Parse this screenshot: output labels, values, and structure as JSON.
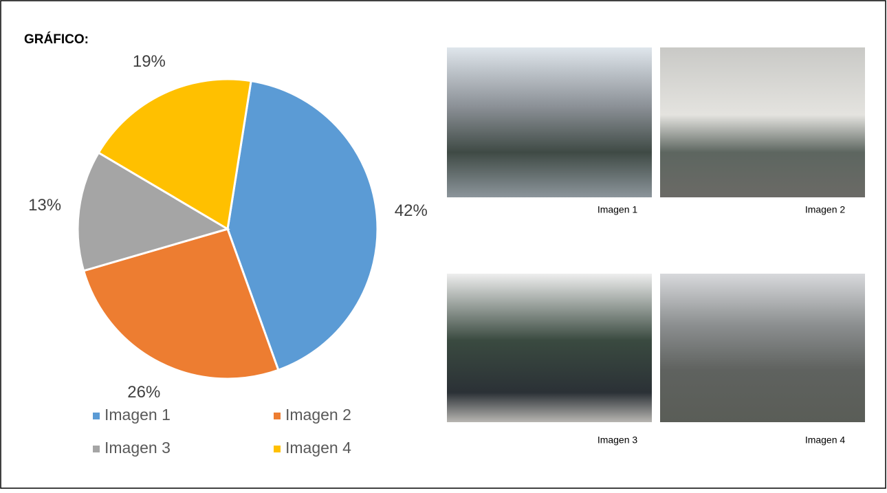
{
  "chart_data": {
    "type": "pie",
    "title": "GRÁFICO:",
    "categories": [
      "Imagen 1",
      "Imagen 2",
      "Imagen 3",
      "Imagen 4"
    ],
    "values": [
      42,
      26,
      13,
      19
    ],
    "value_labels": [
      "42%",
      "26%",
      "13%",
      "19%"
    ],
    "colors": [
      "#5b9bd5",
      "#ed7d31",
      "#a5a5a5",
      "#ffc000"
    ],
    "legend": "bottom"
  },
  "images": [
    {
      "caption": "Imagen 1"
    },
    {
      "caption": "Imagen 2"
    },
    {
      "caption": "Imagen 3"
    },
    {
      "caption": "Imagen 4"
    }
  ]
}
